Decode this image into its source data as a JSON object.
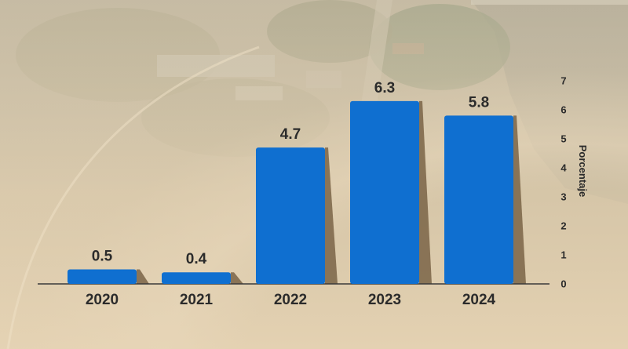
{
  "chart_data": {
    "type": "bar",
    "categories": [
      "2020",
      "2021",
      "2022",
      "2023",
      "2024"
    ],
    "values": [
      0.5,
      0.4,
      4.7,
      6.3,
      5.8
    ],
    "value_labels": [
      "0.5",
      "0.4",
      "4.7",
      "6.3",
      "5.8"
    ],
    "title": "",
    "xlabel": "",
    "ylabel": "Porcentaje",
    "ylim": [
      0,
      7
    ],
    "yticks": [
      "0",
      "1",
      "2",
      "3",
      "4",
      "5",
      "6",
      "7"
    ],
    "y_axis_side": "right",
    "grid": false,
    "legend": "none",
    "bar_color": "#0f6fd0",
    "bar_shadow_color": "#7a6446",
    "text_color": "#2b2b2b"
  }
}
